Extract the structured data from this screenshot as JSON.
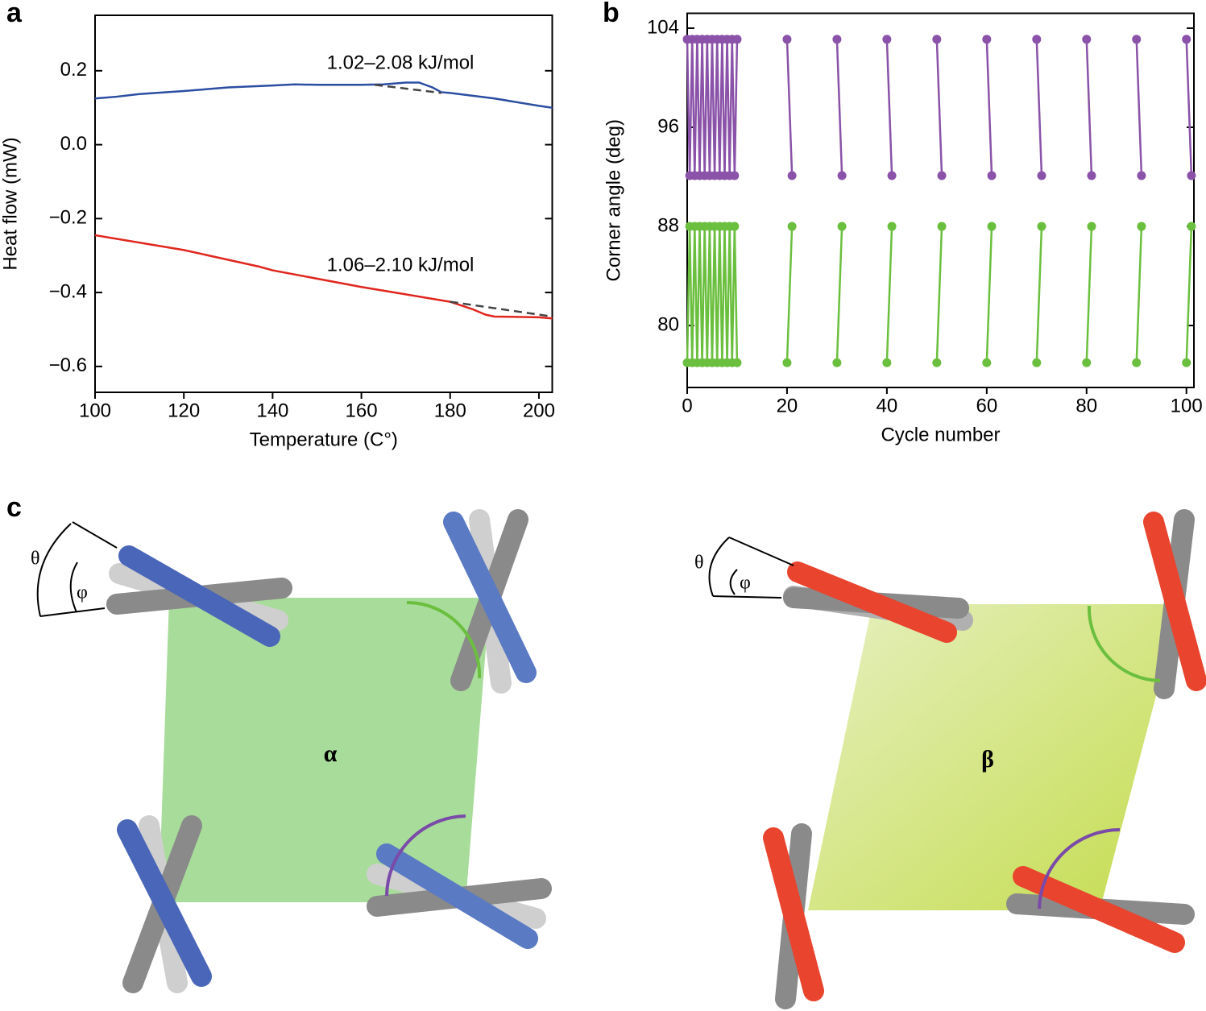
{
  "panels": {
    "labels": [
      "a",
      "b",
      "c"
    ]
  },
  "diagram": {
    "alpha": {
      "label": "α",
      "theta": "θ",
      "phi": "φ"
    },
    "beta": {
      "label": "β",
      "theta": "θ",
      "phi": "φ"
    }
  },
  "chart_data": [
    {
      "type": "line",
      "x_label": "Temperature (C°)",
      "y_label": "Heat flow (mW)",
      "annotations": [
        "1.02–2.08 kJ/mol",
        "1.06–2.10 kJ/mol"
      ],
      "xlim": [
        100,
        203
      ],
      "xticks": [
        100,
        120,
        140,
        160,
        180,
        200
      ],
      "ylim": [
        -0.67,
        0.35
      ],
      "yticks": [
        {
          "value": -0.6,
          "label": "−0.6"
        },
        {
          "value": -0.4,
          "label": "−0.4"
        },
        {
          "value": -0.2,
          "label": "−0.2"
        },
        {
          "value": 0,
          "label": "0.0"
        },
        0.2
      ],
      "series": [
        {
          "color": "#2b4ea2",
          "x": [
            100,
            105,
            110,
            120,
            130,
            140,
            145,
            150,
            160,
            165,
            170,
            173,
            176,
            178,
            180,
            190,
            200,
            203
          ],
          "values": [
            0.125,
            0.13,
            0.137,
            0.145,
            0.155,
            0.16,
            0.163,
            0.162,
            0.162,
            0.163,
            0.168,
            0.168,
            0.155,
            0.142,
            0.14,
            0.125,
            0.105,
            0.1
          ]
        },
        {
          "color": "#e0261e",
          "x": [
            100,
            120,
            137,
            140,
            160,
            170,
            180,
            185,
            188,
            190,
            200,
            203
          ],
          "values": [
            -0.245,
            -0.285,
            -0.33,
            -0.34,
            -0.385,
            -0.405,
            -0.425,
            -0.445,
            -0.46,
            -0.465,
            -0.467,
            -0.47
          ]
        },
        {
          "color": "#444444",
          "dash": true,
          "x": [
            163,
            178
          ],
          "values": [
            0.162,
            0.14
          ]
        },
        {
          "color": "#444444",
          "dash": true,
          "x": [
            180,
            203
          ],
          "values": [
            -0.425,
            -0.465
          ]
        }
      ]
    },
    {
      "type": "line",
      "markers": true,
      "x_label": "Cycle number",
      "y_label": "Corner angle (deg)",
      "xlim": [
        0,
        101.5
      ],
      "xticks": [
        0,
        20,
        40,
        60,
        80,
        100
      ],
      "ylim": [
        75,
        105.2
      ],
      "yticks": [
        80,
        88,
        96,
        104
      ],
      "x": [
        0,
        0.5,
        1,
        1.5,
        2,
        2.5,
        3,
        3.5,
        4,
        4.5,
        5,
        5.5,
        6,
        6.5,
        7,
        7.5,
        8,
        8.5,
        9,
        9.5,
        10,
        15,
        20,
        21,
        25,
        30,
        31,
        35,
        40,
        41,
        45,
        50,
        51,
        55,
        60,
        61,
        65,
        70,
        71,
        75,
        80,
        81,
        85,
        90,
        91,
        95,
        100,
        101
      ],
      "series": [
        {
          "color": "#8a52a8",
          "values": [
            103.1,
            92.1,
            103.1,
            92.1,
            103.1,
            92.1,
            103.1,
            92.1,
            103.1,
            92.1,
            103.1,
            92.1,
            103.1,
            92.1,
            103.1,
            92.1,
            103.1,
            92.1,
            103.1,
            92.1,
            103.1,
            null,
            103.1,
            92.1,
            null,
            103.1,
            92.1,
            null,
            103.1,
            92.1,
            null,
            103.1,
            92.1,
            null,
            103.1,
            92.1,
            null,
            103.1,
            92.1,
            null,
            103.1,
            92.1,
            null,
            103.1,
            92.1,
            null,
            103.1,
            92.1
          ]
        },
        {
          "color": "#6bbf3e",
          "values": [
            77,
            88,
            77,
            88,
            77,
            88,
            77,
            88,
            77,
            88,
            77,
            88,
            77,
            88,
            77,
            88,
            77,
            88,
            77,
            88,
            77,
            null,
            77,
            88,
            null,
            77,
            88,
            null,
            77,
            88,
            null,
            77,
            88,
            null,
            77,
            88,
            null,
            77,
            88,
            null,
            77,
            88,
            null,
            77,
            88,
            null,
            77,
            88
          ]
        }
      ]
    }
  ]
}
